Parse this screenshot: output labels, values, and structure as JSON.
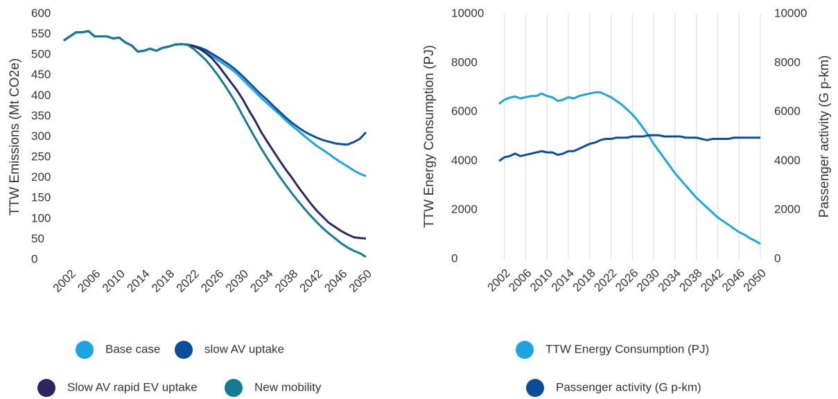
{
  "chart_data": [
    {
      "type": "line",
      "y_label": "TTW Emissions (Mt CO2e)",
      "x": [
        2001,
        2002,
        2003,
        2004,
        2005,
        2006,
        2007,
        2008,
        2009,
        2010,
        2011,
        2012,
        2013,
        2014,
        2015,
        2016,
        2017,
        2018,
        2019,
        2020,
        2021,
        2022,
        2023,
        2024,
        2025,
        2026,
        2027,
        2028,
        2029,
        2030,
        2031,
        2032,
        2033,
        2034,
        2035,
        2036,
        2037,
        2038,
        2039,
        2040,
        2041,
        2042,
        2043,
        2044,
        2045,
        2046,
        2047,
        2048,
        2049,
        2050
      ],
      "xlim": [
        2001,
        2050
      ],
      "xticks": [
        2002,
        2006,
        2010,
        2014,
        2018,
        2022,
        2026,
        2030,
        2034,
        2038,
        2042,
        2046,
        2050
      ],
      "ylim": [
        0,
        600
      ],
      "yticks": [
        0,
        50,
        100,
        150,
        200,
        250,
        300,
        350,
        400,
        450,
        500,
        550,
        600
      ],
      "grid": false,
      "series": [
        {
          "name": "Base case",
          "color": "#1ca4e0",
          "values": [
            535,
            545,
            555,
            555,
            558,
            545,
            545,
            545,
            540,
            542,
            530,
            523,
            508,
            510,
            515,
            510,
            517,
            520,
            525,
            526,
            525,
            520,
            515,
            508,
            498,
            487,
            477,
            467,
            455,
            440,
            425,
            410,
            395,
            382,
            368,
            355,
            340,
            327,
            315,
            302,
            290,
            278,
            268,
            258,
            247,
            237,
            228,
            218,
            210,
            204
          ]
        },
        {
          "name": "slow AV uptake",
          "color": "#0b4d99",
          "values": [
            535,
            545,
            555,
            555,
            558,
            545,
            545,
            545,
            540,
            542,
            530,
            523,
            508,
            510,
            515,
            510,
            517,
            520,
            525,
            526,
            525,
            522,
            518,
            512,
            503,
            494,
            484,
            474,
            462,
            448,
            433,
            418,
            403,
            390,
            375,
            361,
            347,
            334,
            323,
            313,
            305,
            298,
            292,
            288,
            284,
            282,
            281,
            287,
            295,
            311
          ]
        },
        {
          "name": "Slow AV rapid EV uptake",
          "color": "#2a2662",
          "values": [
            535,
            545,
            555,
            555,
            558,
            545,
            545,
            545,
            540,
            542,
            530,
            523,
            508,
            510,
            515,
            510,
            517,
            520,
            525,
            526,
            525,
            522,
            515,
            505,
            492,
            475,
            455,
            435,
            415,
            392,
            365,
            340,
            312,
            288,
            265,
            242,
            220,
            200,
            178,
            158,
            138,
            120,
            105,
            90,
            80,
            70,
            62,
            55,
            53,
            52
          ]
        },
        {
          "name": "New mobility",
          "color": "#137b94",
          "values": [
            535,
            545,
            555,
            555,
            558,
            545,
            545,
            545,
            540,
            542,
            530,
            523,
            508,
            510,
            515,
            510,
            517,
            520,
            525,
            526,
            525,
            515,
            502,
            488,
            470,
            450,
            428,
            405,
            380,
            352,
            325,
            298,
            272,
            248,
            225,
            203,
            182,
            162,
            143,
            125,
            108,
            92,
            77,
            64,
            52,
            40,
            30,
            22,
            16,
            7
          ]
        }
      ]
    },
    {
      "type": "line",
      "y_label": "TTW Energy Consumption (PJ)",
      "y2_label": "Passenger activity (G p-km)",
      "x": [
        2001,
        2002,
        2003,
        2004,
        2005,
        2006,
        2007,
        2008,
        2009,
        2010,
        2011,
        2012,
        2013,
        2014,
        2015,
        2016,
        2017,
        2018,
        2019,
        2020,
        2021,
        2022,
        2023,
        2024,
        2025,
        2026,
        2027,
        2028,
        2029,
        2030,
        2031,
        2032,
        2033,
        2034,
        2035,
        2036,
        2037,
        2038,
        2039,
        2040,
        2041,
        2042,
        2043,
        2044,
        2045,
        2046,
        2047,
        2048,
        2049,
        2050
      ],
      "xlim": [
        2001,
        2050
      ],
      "xticks": [
        2002,
        2006,
        2010,
        2014,
        2018,
        2022,
        2026,
        2030,
        2034,
        2038,
        2042,
        2046,
        2050
      ],
      "ylim": [
        0,
        10000
      ],
      "yticks": [
        0,
        2000,
        4000,
        6000,
        8000,
        10000
      ],
      "y2lim": [
        0,
        10000
      ],
      "y2ticks": [
        0,
        2000,
        4000,
        6000,
        8000,
        10000
      ],
      "grid": true,
      "series": [
        {
          "name": "TTW Energy Consumption (PJ)",
          "color": "#1ca4e0",
          "values": [
            6330,
            6500,
            6580,
            6630,
            6550,
            6600,
            6650,
            6650,
            6750,
            6650,
            6600,
            6450,
            6500,
            6600,
            6550,
            6650,
            6700,
            6750,
            6800,
            6800,
            6700,
            6600,
            6450,
            6300,
            6100,
            5900,
            5650,
            5350,
            5050,
            4700,
            4400,
            4100,
            3800,
            3500,
            3250,
            3000,
            2750,
            2500,
            2300,
            2100,
            1900,
            1700,
            1550,
            1400,
            1250,
            1100,
            1000,
            850,
            750,
            620
          ]
        },
        {
          "name": "Passenger activity (G p-km)",
          "color": "#0b4d99",
          "axis": "y2",
          "values": [
            4000,
            4150,
            4200,
            4300,
            4200,
            4250,
            4300,
            4350,
            4400,
            4350,
            4350,
            4250,
            4300,
            4400,
            4400,
            4500,
            4600,
            4700,
            4750,
            4850,
            4900,
            4900,
            4950,
            4950,
            4950,
            5000,
            5000,
            5000,
            5050,
            5050,
            5050,
            5000,
            5000,
            5000,
            5000,
            4950,
            4950,
            4950,
            4900,
            4850,
            4900,
            4900,
            4900,
            4900,
            4950,
            4950,
            4950,
            4950,
            4950,
            4950
          ]
        }
      ]
    }
  ]
}
